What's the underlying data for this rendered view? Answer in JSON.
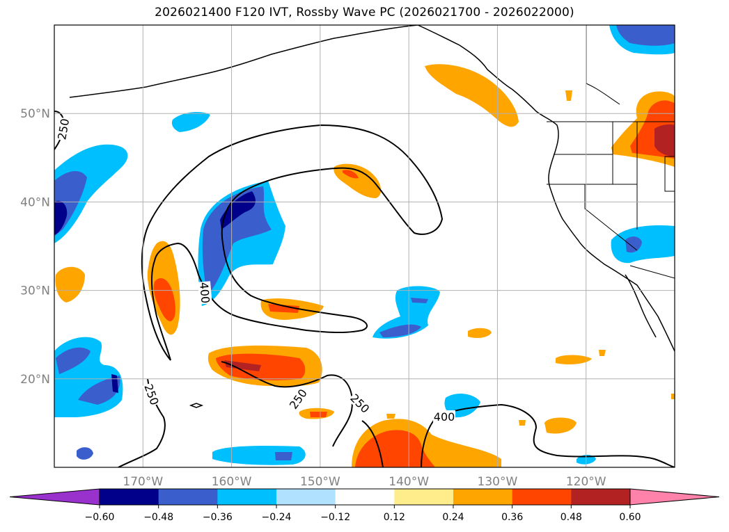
{
  "chart_data": {
    "type": "heatmap",
    "title": "2026021400 F120 IVT, Rossby Wave PC (2026021700 - 2026022000)",
    "projection": "map, North Pacific / West Coast of North America",
    "lon_range": [
      -180,
      -110
    ],
    "lat_range": [
      10,
      60
    ],
    "x_ticks": [
      -170,
      -160,
      -150,
      -140,
      -130,
      -120
    ],
    "x_tick_labels": [
      "170°W",
      "160°W",
      "150°W",
      "140°W",
      "130°W",
      "120°W"
    ],
    "y_ticks": [
      20,
      30,
      40,
      50
    ],
    "y_tick_labels": [
      "20°N",
      "30°N",
      "40°N",
      "50°N"
    ],
    "grid": true,
    "colorbar": {
      "orientation": "horizontal",
      "levels": [
        -0.6,
        -0.48,
        -0.36,
        -0.24,
        -0.12,
        0.12,
        0.24,
        0.36,
        0.48,
        0.6
      ],
      "tick_labels": [
        "−0.60",
        "−0.48",
        "−0.36",
        "−0.24",
        "−0.12",
        "0.12",
        "0.24",
        "0.36",
        "0.48",
        "0.60"
      ],
      "colors": [
        "#9932cc",
        "#00008b",
        "#3a5fcd",
        "#00bfff",
        "#b0e2ff",
        "#ffffff",
        "#ffec8b",
        "#ffa500",
        "#ff4500",
        "#b22222",
        "#ff82ab"
      ],
      "extend": "both"
    },
    "ivt_contours": [
      {
        "level": 250,
        "label": "250",
        "label_positions": [
          [
            -179,
            48
          ],
          [
            -169,
            18
          ],
          [
            -152.5,
            17.5
          ],
          [
            -145.5,
            17
          ]
        ]
      },
      {
        "level": 400,
        "label": "400",
        "label_positions": [
          [
            -163,
            29.5
          ],
          [
            -136,
            15.5
          ]
        ]
      }
    ],
    "anomaly_features": [
      {
        "sign": "negative",
        "peak": -0.52,
        "center": [
          -161,
          37
        ],
        "note": "strong negative PC core west of the wave trough"
      },
      {
        "sign": "negative",
        "peak": -0.5,
        "center": [
          -179,
          39
        ],
        "note": "negative band at west edge"
      },
      {
        "sign": "negative",
        "peak": -0.42,
        "center": [
          -171,
          20
        ],
        "note": "negative cluster southwest"
      },
      {
        "sign": "negative",
        "peak": -0.45,
        "center": [
          -111,
          58.5
        ],
        "note": "negative patch northeast corner"
      },
      {
        "sign": "negative",
        "peak": -0.4,
        "center": [
          -115,
          33
        ],
        "note": "negative near southern California"
      },
      {
        "sign": "negative",
        "peak": -0.34,
        "center": [
          -142,
          27
        ],
        "note": "negative patch central"
      },
      {
        "sign": "positive",
        "peak": 0.5,
        "center": [
          -111,
          47
        ],
        "note": "strong positive over Pacific Northwest interior"
      },
      {
        "sign": "positive",
        "peak": 0.42,
        "center": [
          -156,
          21
        ],
        "note": "positive band south"
      },
      {
        "sign": "positive",
        "peak": 0.4,
        "center": [
          -139,
          12
        ],
        "note": "positive bottom center"
      },
      {
        "sign": "positive",
        "peak": 0.38,
        "center": [
          -167,
          30
        ],
        "note": "positive north of Hawaii"
      },
      {
        "sign": "positive",
        "peak": 0.3,
        "center": [
          -133,
          54
        ],
        "note": "positive near British Columbia coast"
      },
      {
        "sign": "positive",
        "peak": 0.3,
        "center": [
          -148,
          42
        ],
        "note": "positive in wave crest"
      }
    ]
  }
}
